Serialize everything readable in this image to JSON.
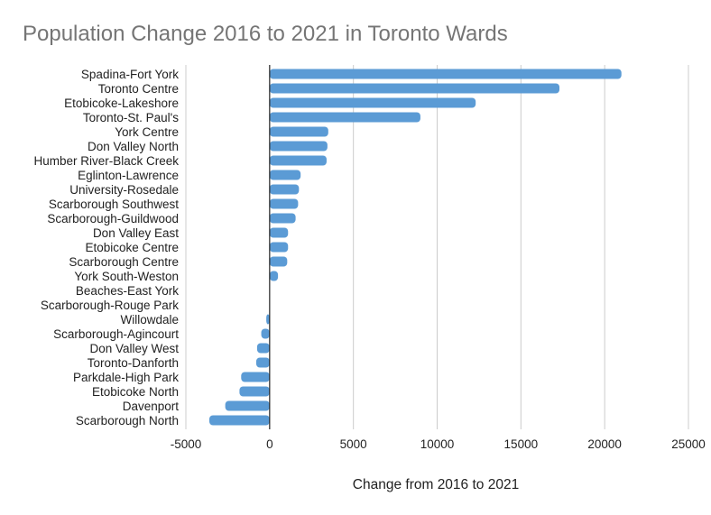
{
  "chart_data": {
    "type": "bar",
    "orientation": "horizontal",
    "title": "Population Change 2016 to 2021 in Toronto Wards",
    "xlabel": "Change from 2016 to 2021",
    "ylabel": "",
    "xlim": [
      -5000,
      25000
    ],
    "xticks": [
      -5000,
      0,
      5000,
      10000,
      15000,
      20000,
      25000
    ],
    "xtick_labels": [
      "-5000",
      "0",
      "5000",
      "10000",
      "15000",
      "20000",
      "25000"
    ],
    "grid": true,
    "legend": "none",
    "bar_color": "#5b9bd5",
    "categories": [
      "Spadina-Fort York",
      "Toronto Centre",
      "Etobicoke-Lakeshore",
      "Toronto-St. Paul's",
      "York Centre",
      "Don Valley North",
      "Humber River-Black Creek",
      "Eglinton-Lawrence",
      "University-Rosedale",
      "Scarborough Southwest",
      "Scarborough-Guildwood",
      "Don Valley East",
      "Etobicoke Centre",
      "Scarborough Centre",
      "York South-Weston",
      "Beaches-East York",
      "Scarborough-Rouge Park",
      "Willowdale",
      "Scarborough-Agincourt",
      "Don Valley West",
      "Toronto-Danforth",
      "Parkdale-High Park",
      "Etobicoke North",
      "Davenport",
      "Scarborough North"
    ],
    "values": [
      21000,
      17300,
      12300,
      9000,
      3500,
      3450,
      3400,
      1850,
      1750,
      1700,
      1550,
      1100,
      1100,
      1050,
      500,
      0,
      0,
      -200,
      -500,
      -750,
      -800,
      -1700,
      -1800,
      -2650,
      -3600
    ]
  }
}
